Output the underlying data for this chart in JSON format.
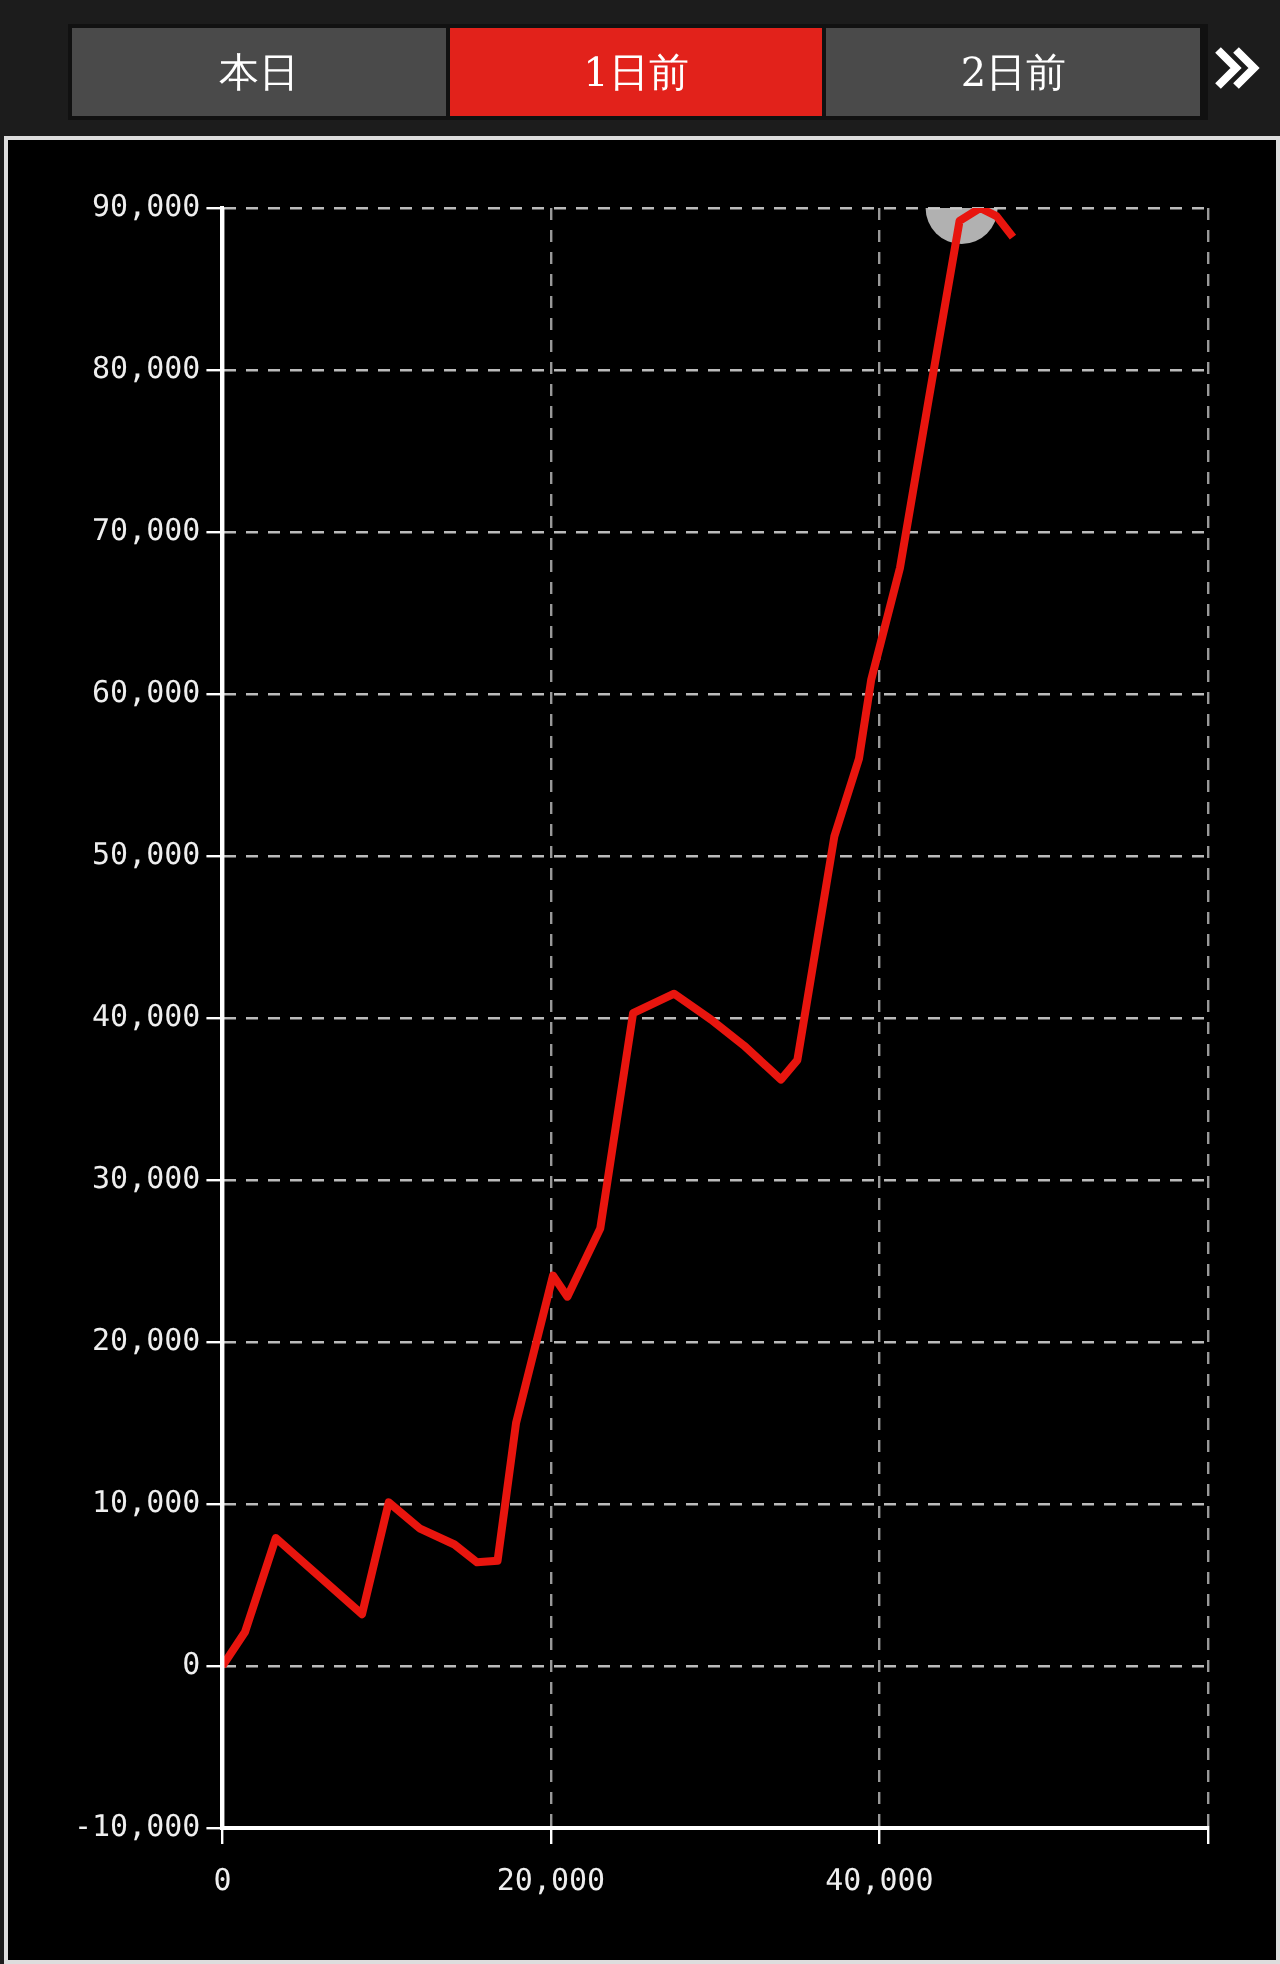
{
  "chart_data": {
    "type": "line",
    "annotations": [
      "本日",
      "1日前",
      "2日前"
    ],
    "x": [
      0,
      1375,
      3250,
      8500,
      10125,
      12000,
      14125,
      15500,
      16750,
      17875,
      20125,
      21000,
      23000,
      25000,
      27500,
      29750,
      31750,
      34000,
      35000,
      37250,
      38750,
      39500,
      41250,
      43000,
      44875,
      46125,
      47125,
      48125
    ],
    "series": [
      {
        "type": "line",
        "color": "#e8150e",
        "values": [
          0,
          2100,
          7900,
          3200,
          10100,
          8500,
          7500,
          6400,
          6500,
          15000,
          24100,
          22800,
          27000,
          40300,
          41500,
          39900,
          38300,
          36200,
          37400,
          51200,
          56000,
          60900,
          67800,
          78200,
          89200,
          90000,
          89500,
          88200
        ]
      },
      {
        "type": "scatter",
        "color": "#cccccc",
        "x": [
          45000
        ],
        "values": [
          90000
        ]
      }
    ],
    "xlim": [
      0,
      60000
    ],
    "xticks": [
      0,
      {
        "value": 20000,
        "label": "20,000"
      },
      {
        "value": 40000,
        "label": "40,000"
      },
      {
        "value": 60000,
        "label": null
      }
    ],
    "ylim": [
      -10000,
      90000
    ],
    "yticks": [
      {
        "value": -10000,
        "label": "-10,000"
      },
      0,
      {
        "value": 10000,
        "label": "10,000"
      },
      {
        "value": 20000,
        "label": "20,000"
      },
      {
        "value": 30000,
        "label": "30,000"
      },
      {
        "value": 40000,
        "label": "40,000"
      },
      {
        "value": 50000,
        "label": "50,000"
      },
      {
        "value": 60000,
        "label": "60,000"
      },
      {
        "value": 70000,
        "label": "70,000"
      },
      {
        "value": 80000,
        "label": "80,000"
      },
      {
        "value": 90000,
        "label": "90,000"
      }
    ],
    "grid": true,
    "legend": false
  }
}
